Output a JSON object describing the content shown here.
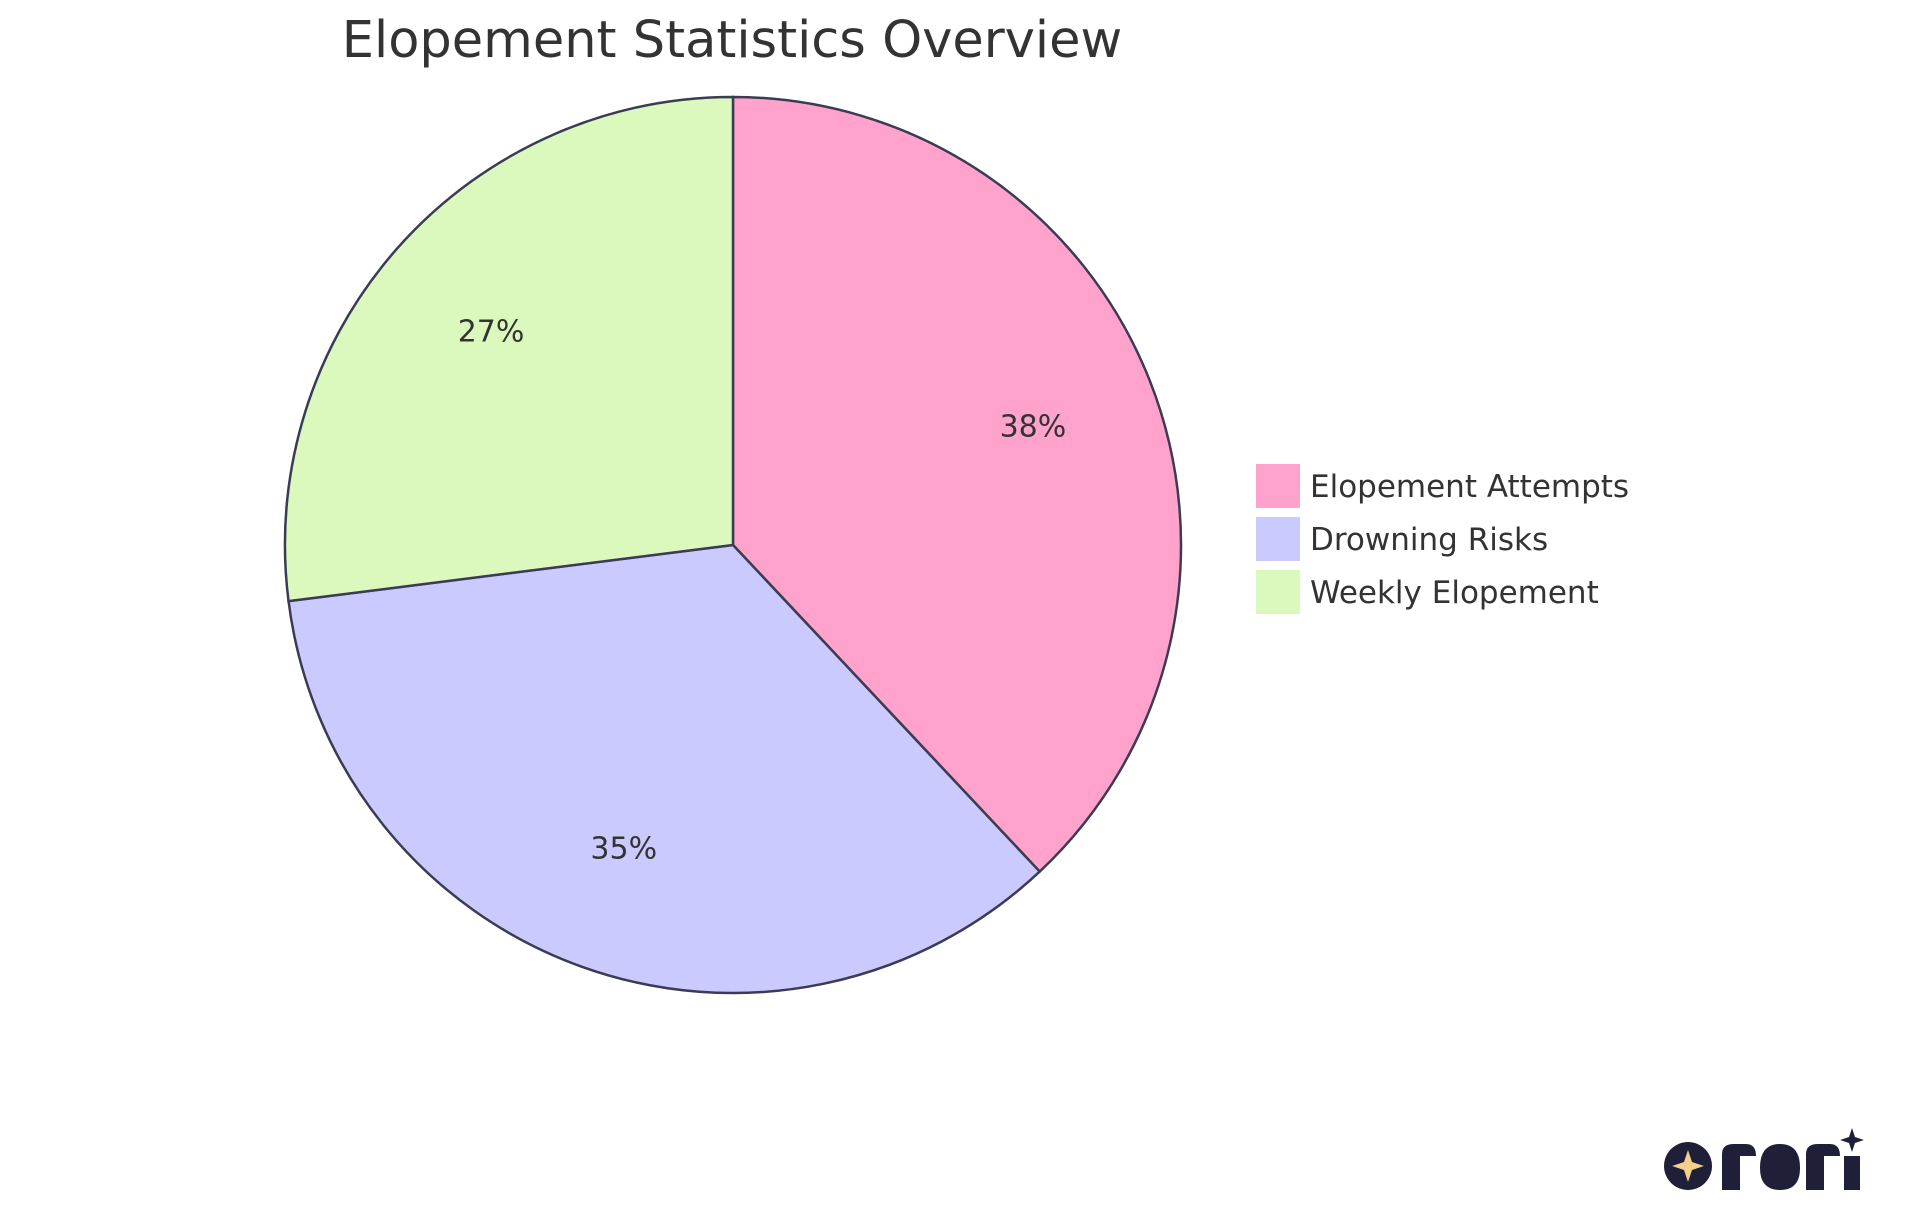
{
  "chart_data": {
    "type": "pie",
    "title": "Elopement Statistics Overview",
    "slices": [
      {
        "label": "Elopement Attempts",
        "value": 38,
        "display": "38%",
        "color": "#FFA3CC"
      },
      {
        "label": "Drowning Risks",
        "value": 35,
        "display": "35%",
        "color": "#CACAFE"
      },
      {
        "label": "Weekly Elopement",
        "value": 27,
        "display": "27%",
        "color": "#DBF9BC"
      }
    ],
    "start_angle_deg": 0,
    "direction": "clockwise",
    "legend_position": "right",
    "stroke_color": "#3b3b55"
  },
  "logo": {
    "name": "rori-logo",
    "star_color": "#F5D08A",
    "ink_color": "#1F1F3A"
  }
}
